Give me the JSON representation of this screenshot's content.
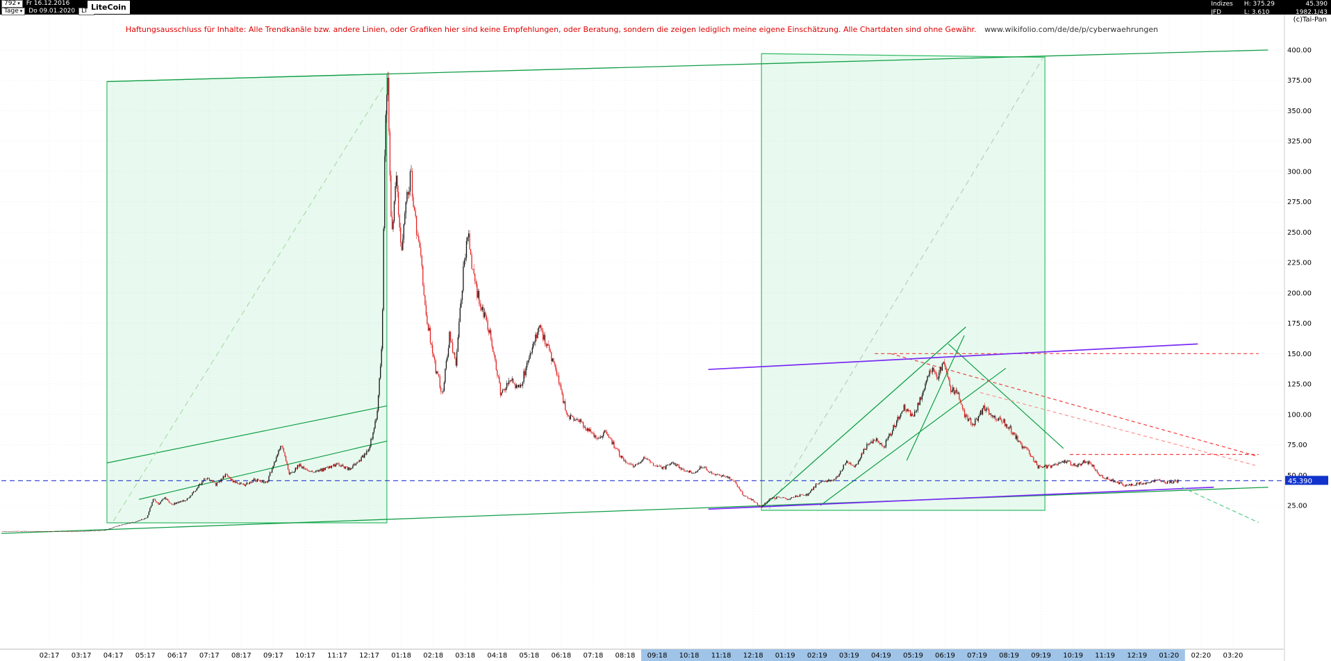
{
  "header": {
    "bars_value": "792",
    "dropdown_arrow": "▾",
    "range_start": "Fr 16.12.2016",
    "instrument": "LiteCoin",
    "timeframe": "Tage",
    "range_end": "Do 09.01.2020",
    "symbol": "LTC",
    "indizes_label": "Indizes",
    "high": "H: 375.29",
    "last_price": "45.390",
    "provider": "JFD",
    "low": "L: 3.610",
    "extra_value": "1982.1/43",
    "copyright": "(c)Tai-Pan"
  },
  "disclaimer": {
    "text": "Haftungsausschluss für Inhalte: Alle Trendkanäle bzw. andere Linien, oder Grafiken hier sind keine Empfehlungen, oder Beratung, sondern die zeigen lediglich meine eigene Einschätzung. Alle Chartdaten sind ohne Gewähr.",
    "link": "www.wikifolio.com/de/de/p/cyberwaehrungen"
  },
  "chart_data": {
    "type": "candlestick",
    "title": "LiteCoin",
    "xlabel": "",
    "ylabel": "",
    "y_axis": {
      "min": 25,
      "max": 400,
      "step": 25,
      "labels": [
        "400.00",
        "375.00",
        "350.00",
        "325.00",
        "300.00",
        "275.00",
        "250.00",
        "225.00",
        "200.00",
        "175.00",
        "150.00",
        "125.00",
        "100.00",
        "75.00",
        "50.00",
        "25.00"
      ]
    },
    "x_labels": [
      "02:17",
      "03:17",
      "04:17",
      "05:17",
      "06:17",
      "07:17",
      "08:17",
      "09:17",
      "10:17",
      "11:17",
      "12:17",
      "01:18",
      "02:18",
      "03:18",
      "04:18",
      "05:18",
      "06:18",
      "07:18",
      "08:18",
      "09:18",
      "10:18",
      "11:18",
      "12:18",
      "01:19",
      "02:19",
      "03:19",
      "04:19",
      "05:19",
      "06:19",
      "07:19",
      "08:19",
      "09:19",
      "10:19",
      "11:19",
      "12:19",
      "01:20",
      "02:20",
      "03:20"
    ],
    "x_highlight_from": "09:18",
    "x_highlight_to": "01:20",
    "range_high": 375.29,
    "range_low": 3.61,
    "current_price": 45.39,
    "current_price_label": "45.390",
    "price_path": [
      [
        0,
        3.7
      ],
      [
        0.5,
        3.9
      ],
      [
        1.2,
        3.8
      ],
      [
        2.2,
        3.61
      ],
      [
        2.8,
        4.1
      ],
      [
        3.2,
        4.5
      ],
      [
        3.5,
        7
      ],
      [
        3.8,
        9.5
      ],
      [
        4.2,
        11.5
      ],
      [
        4.55,
        15
      ],
      [
        4.75,
        31
      ],
      [
        4.9,
        26
      ],
      [
        5.1,
        31
      ],
      [
        5.35,
        26
      ],
      [
        5.8,
        30
      ],
      [
        6.1,
        39
      ],
      [
        6.4,
        48
      ],
      [
        6.7,
        42
      ],
      [
        7.0,
        50
      ],
      [
        7.3,
        44
      ],
      [
        7.6,
        42
      ],
      [
        7.9,
        46
      ],
      [
        8.3,
        44
      ],
      [
        8.55,
        62
      ],
      [
        8.75,
        76
      ],
      [
        9.0,
        50
      ],
      [
        9.3,
        58
      ],
      [
        9.7,
        52
      ],
      [
        10.1,
        55
      ],
      [
        10.5,
        59
      ],
      [
        10.9,
        55
      ],
      [
        11.2,
        62
      ],
      [
        11.5,
        72
      ],
      [
        11.75,
        102
      ],
      [
        11.9,
        160
      ],
      [
        12.0,
        340
      ],
      [
        12.08,
        375
      ],
      [
        12.2,
        250
      ],
      [
        12.35,
        290
      ],
      [
        12.5,
        230
      ],
      [
        12.65,
        272
      ],
      [
        12.8,
        300
      ],
      [
        12.95,
        255
      ],
      [
        13.1,
        230
      ],
      [
        13.3,
        180
      ],
      [
        13.55,
        140
      ],
      [
        13.8,
        116
      ],
      [
        14.0,
        165
      ],
      [
        14.2,
        142
      ],
      [
        14.45,
        220
      ],
      [
        14.6,
        248
      ],
      [
        14.8,
        205
      ],
      [
        15.0,
        190
      ],
      [
        15.3,
        162
      ],
      [
        15.6,
        118
      ],
      [
        15.9,
        128
      ],
      [
        16.2,
        122
      ],
      [
        16.5,
        145
      ],
      [
        16.8,
        172
      ],
      [
        17.1,
        155
      ],
      [
        17.4,
        128
      ],
      [
        17.7,
        98
      ],
      [
        18.0,
        96
      ],
      [
        18.3,
        88
      ],
      [
        18.6,
        80
      ],
      [
        18.9,
        86
      ],
      [
        19.2,
        72
      ],
      [
        19.5,
        60
      ],
      [
        19.8,
        57
      ],
      [
        20.1,
        64
      ],
      [
        20.4,
        58
      ],
      [
        20.7,
        56
      ],
      [
        21.0,
        60
      ],
      [
        21.3,
        55
      ],
      [
        21.6,
        52
      ],
      [
        21.9,
        57
      ],
      [
        22.2,
        52
      ],
      [
        22.5,
        50
      ],
      [
        22.8,
        47
      ],
      [
        23.0,
        42
      ],
      [
        23.2,
        33
      ],
      [
        23.5,
        29
      ],
      [
        23.75,
        23.5
      ],
      [
        24.0,
        30
      ],
      [
        24.3,
        32
      ],
      [
        24.6,
        30
      ],
      [
        24.9,
        33
      ],
      [
        25.2,
        34
      ],
      [
        25.5,
        43
      ],
      [
        25.8,
        45
      ],
      [
        26.1,
        47
      ],
      [
        26.4,
        61
      ],
      [
        26.7,
        57
      ],
      [
        27.0,
        73
      ],
      [
        27.3,
        79
      ],
      [
        27.6,
        74
      ],
      [
        27.9,
        90
      ],
      [
        28.2,
        106
      ],
      [
        28.5,
        97
      ],
      [
        28.8,
        117
      ],
      [
        29.05,
        138
      ],
      [
        29.25,
        128
      ],
      [
        29.45,
        143
      ],
      [
        29.65,
        122
      ],
      [
        29.9,
        117
      ],
      [
        30.1,
        99
      ],
      [
        30.4,
        92
      ],
      [
        30.7,
        105
      ],
      [
        31.0,
        99
      ],
      [
        31.3,
        95
      ],
      [
        31.6,
        86
      ],
      [
        31.9,
        74
      ],
      [
        32.1,
        70
      ],
      [
        32.4,
        57
      ],
      [
        32.7,
        57
      ],
      [
        33.0,
        59
      ],
      [
        33.3,
        62
      ],
      [
        33.6,
        57
      ],
      [
        33.9,
        62
      ],
      [
        34.1,
        58
      ],
      [
        34.3,
        50
      ],
      [
        34.6,
        47
      ],
      [
        34.9,
        44
      ],
      [
        35.2,
        41
      ],
      [
        35.5,
        43
      ],
      [
        35.8,
        43.5
      ],
      [
        36.1,
        46
      ],
      [
        36.4,
        44
      ],
      [
        36.6,
        44.5
      ],
      [
        36.8,
        45.39
      ]
    ],
    "trend_boxes": [
      {
        "points": [
          [
            3.3,
            374
          ],
          [
            12.05,
            380.3
          ],
          [
            12.05,
            10.7
          ],
          [
            3.3,
            10.7
          ]
        ],
        "stroke": "#33bb66",
        "fill": "rgba(80,220,130,0.13)"
      },
      {
        "points": [
          [
            23.76,
            397
          ],
          [
            32.62,
            394
          ],
          [
            32.62,
            21
          ],
          [
            23.76,
            21
          ]
        ],
        "stroke": "#33bb66",
        "fill": "rgba(80,220,130,0.13)"
      }
    ],
    "trend_lines": [
      {
        "from": [
          3.3,
          374
        ],
        "to": [
          39.6,
          400
        ],
        "color": "#0f9d45",
        "w": 1.3
      },
      {
        "from": [
          0,
          2
        ],
        "to": [
          39.6,
          40
        ],
        "color": "#0f9d45",
        "w": 1.3
      },
      {
        "from": [
          3.3,
          60
        ],
        "to": [
          12.05,
          107
        ],
        "color": "#0f9d45",
        "w": 1.2
      },
      {
        "from": [
          4.3,
          30
        ],
        "to": [
          12.05,
          78
        ],
        "color": "#0f9d45",
        "w": 1.2
      },
      {
        "from": [
          3.5,
          12
        ],
        "to": [
          12.0,
          372
        ],
        "color": "#aadbaa",
        "dash": "8 6",
        "w": 1.2
      },
      {
        "from": [
          24.0,
          22
        ],
        "to": [
          32.55,
          393
        ],
        "color": "#b9cdb9",
        "dash": "8 6",
        "w": 1.2
      },
      {
        "from": [
          23.8,
          24
        ],
        "to": [
          30.15,
          172
        ],
        "color": "#0f9d45",
        "w": 1.3
      },
      {
        "from": [
          25.6,
          25
        ],
        "to": [
          31.4,
          138
        ],
        "color": "#0f9d45",
        "w": 1.2
      },
      {
        "from": [
          28.3,
          62
        ],
        "to": [
          30.1,
          165
        ],
        "color": "#0f9d45",
        "w": 1.2
      },
      {
        "from": [
          29.6,
          158
        ],
        "to": [
          33.2,
          72
        ],
        "color": "#0f9d45",
        "w": 1.2
      },
      {
        "from": [
          27.3,
          150
        ],
        "to": [
          39.3,
          150
        ],
        "color": "#f23b3b",
        "dash": "5 4",
        "w": 1.2
      },
      {
        "from": [
          27.8,
          150
        ],
        "to": [
          39.2,
          66
        ],
        "color": "#f23b3b",
        "dash": "5 4",
        "w": 1.2
      },
      {
        "from": [
          30.6,
          118
        ],
        "to": [
          39.2,
          58
        ],
        "color": "#ff9090",
        "dash": "5 4",
        "w": 1.2
      },
      {
        "from": [
          33.4,
          67
        ],
        "to": [
          39.3,
          67
        ],
        "color": "#f23b3b",
        "dash": "5 4",
        "w": 1.2
      },
      {
        "from": [
          22.1,
          137
        ],
        "to": [
          37.4,
          158
        ],
        "color": "#7a2bf5",
        "w": 1.7
      },
      {
        "from": [
          22.1,
          22
        ],
        "to": [
          37.9,
          40
        ],
        "color": "#7a2bf5",
        "w": 1.7
      },
      {
        "from": [
          36.9,
          40
        ],
        "to": [
          39.3,
          11
        ],
        "color": "#55cc88",
        "dash": "6 4",
        "w": 1.2
      },
      {
        "from": [
          0,
          45.39
        ],
        "to": [
          40.1,
          45.39
        ],
        "color": "#2233cc",
        "dash": "7 5",
        "w": 1.1
      }
    ],
    "candle_colors": {
      "up": "#111111",
      "down": "#e22222"
    },
    "colors": {
      "axis_highlight": "#a0c4e8",
      "current_price_bg": "#1133cc",
      "grid": "#ececec"
    }
  }
}
